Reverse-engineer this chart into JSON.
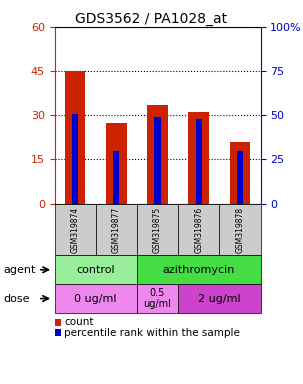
{
  "title": "GDS3562 / PA1028_at",
  "samples": [
    "GSM319874",
    "GSM319877",
    "GSM319875",
    "GSM319876",
    "GSM319878"
  ],
  "count_values": [
    45.0,
    27.5,
    33.5,
    31.0,
    21.0
  ],
  "percentile_values": [
    50.5,
    30.0,
    49.0,
    48.0,
    30.0
  ],
  "left_ylim": [
    0,
    60
  ],
  "right_ylim": [
    0,
    100
  ],
  "left_yticks": [
    0,
    15,
    30,
    45,
    60
  ],
  "right_yticks": [
    0,
    25,
    50,
    75,
    100
  ],
  "left_ytick_labels": [
    "0",
    "15",
    "30",
    "45",
    "60"
  ],
  "right_ytick_labels": [
    "0",
    "25",
    "50",
    "75",
    "100%"
  ],
  "count_color": "#CC2200",
  "percentile_color": "#0000CC",
  "bar_width": 0.5,
  "agent_control_color": "#99EE99",
  "agent_azithromycin_color": "#44DD44",
  "dose_color_light": "#EE88EE",
  "dose_color_dark": "#CC44CC",
  "legend_count_label": "count",
  "legend_percentile_label": "percentile rank within the sample",
  "agent_label": "agent",
  "dose_label": "dose",
  "left_axis_color": "#CC2200",
  "right_axis_color": "#0000CC"
}
